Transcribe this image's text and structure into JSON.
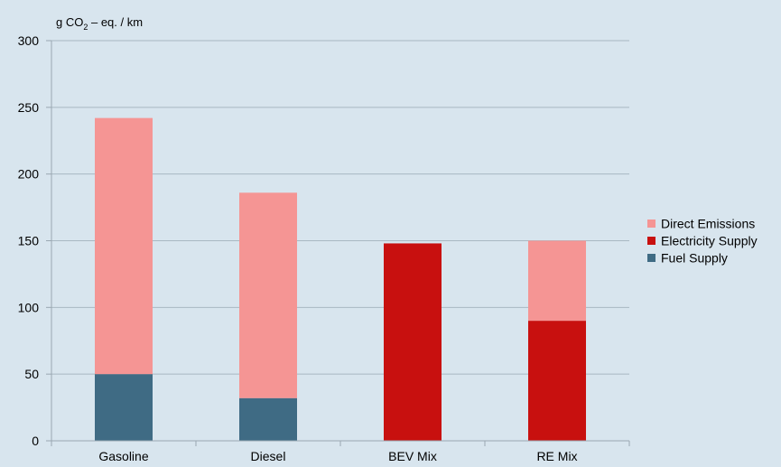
{
  "chart_data": {
    "type": "bar",
    "stacked": true,
    "y_unit_label": {
      "prefix": "g CO",
      "subscript": "2",
      "suffix": " – eq. / km"
    },
    "categories": [
      "Gasoline",
      "Diesel",
      "BEV Mix",
      "RE Mix"
    ],
    "ylim": [
      0,
      300
    ],
    "yticks": [
      "0",
      "50",
      "100",
      "150",
      "200",
      "250",
      "300"
    ],
    "grid": true,
    "legend_position": "right",
    "series": [
      {
        "name": "Fuel Supply",
        "color": "#3f6b84",
        "values": [
          50,
          32,
          0,
          0
        ]
      },
      {
        "name": "Electricity Supply",
        "color": "#c8100f",
        "values": [
          0,
          0,
          148,
          90
        ]
      },
      {
        "name": "Direct Emissions",
        "color": "#f59594",
        "values": [
          192,
          154,
          0,
          60
        ]
      }
    ],
    "legend_order": [
      "Direct Emissions",
      "Electricity Supply",
      "Fuel Supply"
    ]
  }
}
